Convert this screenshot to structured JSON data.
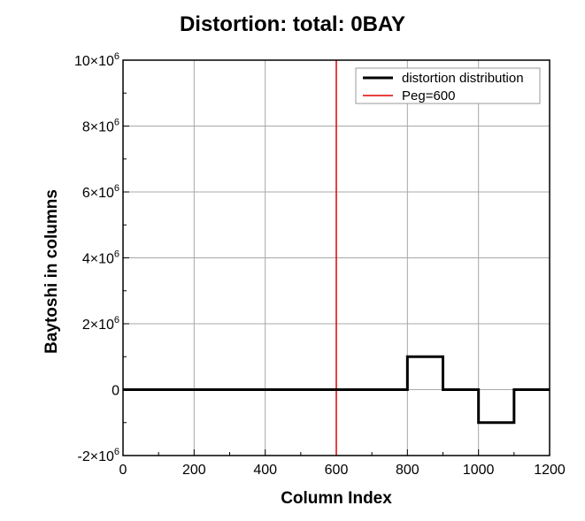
{
  "title": "Distortion: total: 0BAY",
  "chart_data": {
    "type": "line",
    "xlabel": "Column Index",
    "ylabel": "Baytoshi in columns",
    "xlim": [
      0,
      1200
    ],
    "ylim": [
      -2000000,
      10000000
    ],
    "x_ticks": [
      0,
      200,
      400,
      600,
      800,
      1000,
      1200
    ],
    "x_tick_labels": [
      "0",
      "200",
      "400",
      "600",
      "800",
      "1000",
      "1200"
    ],
    "y_ticks": [
      {
        "value": 10000000,
        "mantissa": "10×10",
        "exp": "6"
      },
      {
        "value": 8000000,
        "mantissa": "8×10",
        "exp": "6"
      },
      {
        "value": 6000000,
        "mantissa": "6×10",
        "exp": "6"
      },
      {
        "value": 4000000,
        "mantissa": "4×10",
        "exp": "6"
      },
      {
        "value": 2000000,
        "mantissa": "2×10",
        "exp": "6"
      },
      {
        "value": 0,
        "mantissa": "0",
        "exp": ""
      },
      {
        "value": -2000000,
        "mantissa": "-2×10",
        "exp": "6"
      }
    ],
    "grid": true,
    "legend_position": "top-right",
    "series": [
      {
        "name": "distortion distribution",
        "color": "#000000",
        "x": [
          0,
          800,
          800,
          900,
          900,
          1000,
          1000,
          1100,
          1100,
          1200
        ],
        "y": [
          0,
          0,
          1000000,
          1000000,
          0,
          0,
          -1000000,
          -1000000,
          0,
          0
        ]
      },
      {
        "name": "Peg=600",
        "color": "#e00000",
        "vline_x": 600
      }
    ]
  }
}
